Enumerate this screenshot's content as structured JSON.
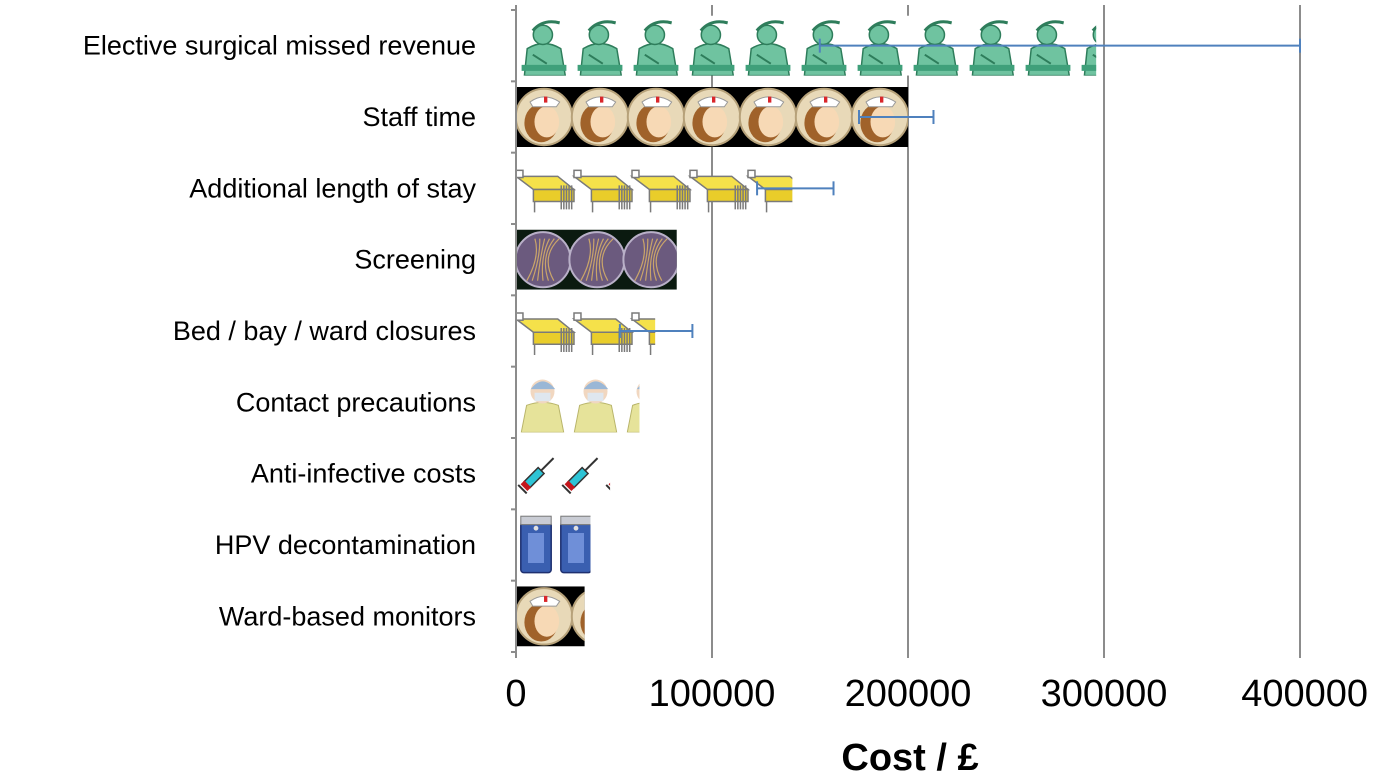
{
  "chart_data": {
    "type": "bar",
    "orientation": "horizontal",
    "xlabel": "Cost / £",
    "xlim": [
      0,
      400000
    ],
    "xticks": [
      0,
      100000,
      200000,
      300000,
      400000
    ],
    "xtick_labels": [
      "0",
      "100000",
      "200000",
      "300000",
      "400000"
    ],
    "grid": "vertical",
    "categories": [
      "Elective surgical missed revenue",
      "Staff time",
      "Additional length of stay",
      "Screening",
      "Bed / bay / ward closures",
      "Contact precautions",
      "Anti-infective costs",
      "HPV decontamination",
      "Ward-based monitors"
    ],
    "values": [
      296000,
      200000,
      141000,
      82000,
      71000,
      63000,
      48000,
      38000,
      35000
    ],
    "error_low": [
      155000,
      175000,
      123000,
      null,
      53000,
      null,
      null,
      null,
      null
    ],
    "error_high": [
      400000,
      213000,
      162000,
      null,
      90000,
      null,
      null,
      null,
      null
    ],
    "icons": [
      "surgeon-icon",
      "nurse-icon",
      "hospital-bed-icon",
      "petri-dish-icon",
      "hospital-bed-icon",
      "masked-staff-icon",
      "syringe-icon",
      "decontamination-unit-icon",
      "nurse-icon"
    ],
    "colors": {
      "gridline": "#8c8c8c",
      "error_bar": "#4f81bd",
      "surgeon_gown": "#6fc3a0",
      "bed_sheet": "#f5e14a",
      "nurse_bg": "#000000",
      "petri_bg": "#0b1a10",
      "syringe_fluid": "#2ec4d6",
      "hpv_unit": "#3a5fb0"
    }
  }
}
